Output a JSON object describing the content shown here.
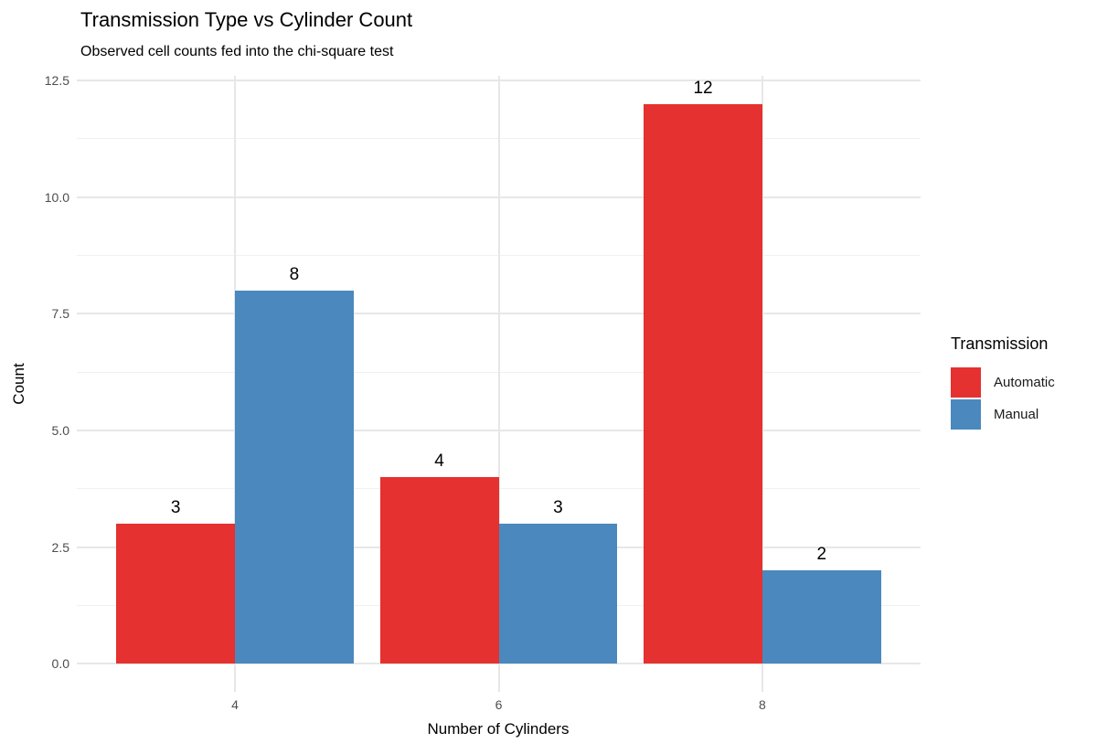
{
  "chart_data": {
    "type": "bar",
    "title": "Transmission Type vs Cylinder Count",
    "subtitle": "Observed cell counts fed into the chi-square test",
    "xlabel": "Number of Cylinders",
    "ylabel": "Count",
    "categories": [
      "4",
      "6",
      "8"
    ],
    "series": [
      {
        "name": "Automatic",
        "color": "#e5312f",
        "values": [
          3,
          4,
          12
        ]
      },
      {
        "name": "Manual",
        "color": "#4a88be",
        "values": [
          8,
          3,
          2
        ]
      }
    ],
    "bar_value_labels": [
      [
        "3",
        "8"
      ],
      [
        "4",
        "3"
      ],
      [
        "12",
        "2"
      ]
    ],
    "y_ticks": [
      0,
      2.5,
      5,
      7.5,
      10,
      12.5
    ],
    "y_tick_labels": [
      "0.0",
      "2.5",
      "5.0",
      "7.5",
      "10.0",
      "12.5"
    ],
    "ylim": [
      0,
      12.5
    ],
    "data_max": 12,
    "legend": {
      "title": "Transmission",
      "position": "right"
    },
    "grid": {
      "horizontal": "major+minor",
      "vertical": "major",
      "minor_between_major": true
    },
    "colors": {
      "background": "#ffffff",
      "grid_major": "#e7e7e7",
      "grid_minor": "#f1f1f1",
      "tick_label": "#4d4d4d",
      "text": "#000000"
    }
  }
}
